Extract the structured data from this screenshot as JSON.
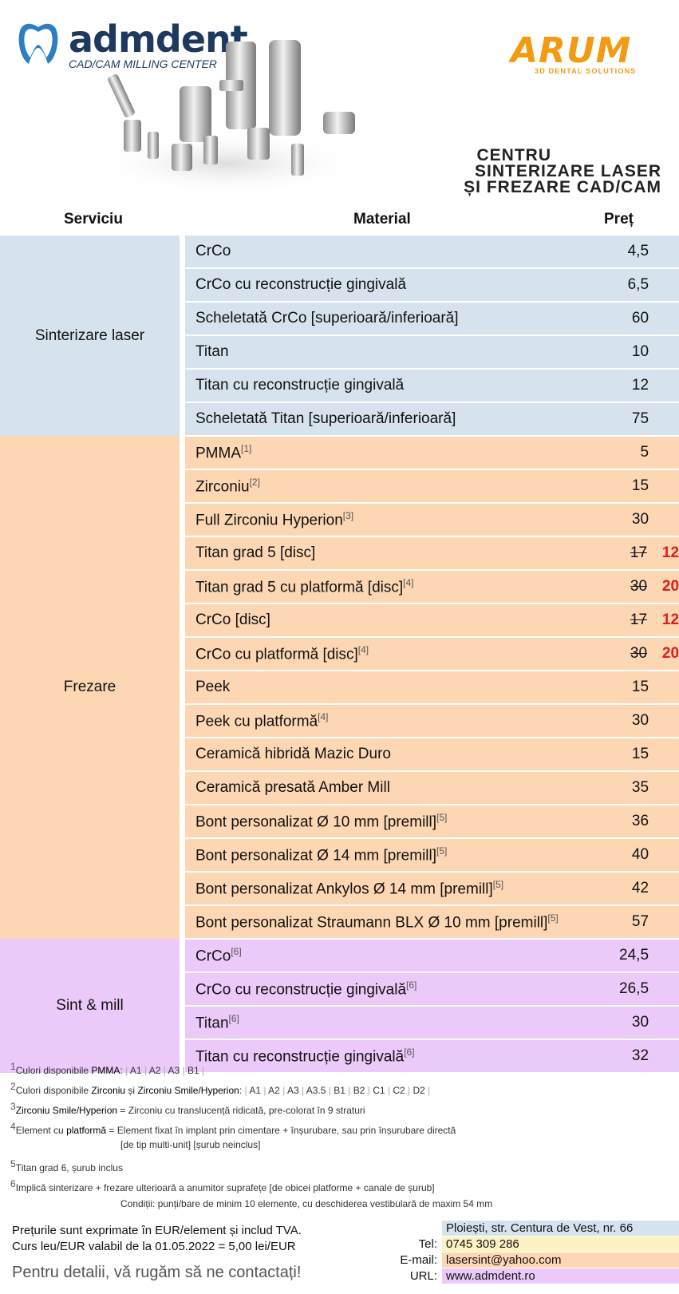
{
  "header": {
    "brand": "admdent",
    "brand_sub": "CAD/CAM MILLING CENTER",
    "partner": "ARUM",
    "partner_sub": "3D DENTAL SOLUTIONS",
    "center_lines": [
      "CENTRU",
      "SINTERIZARE LASER",
      "ȘI FREZARE CAD/CAM"
    ]
  },
  "columns": {
    "service": "Serviciu",
    "material": "Material",
    "price": "Preț"
  },
  "groups": [
    {
      "service": "Sinterizare laser",
      "color": "#d6e3ef",
      "items": [
        {
          "material": "CrCo",
          "price": "4,5"
        },
        {
          "material": "CrCo cu reconstrucție gingivală",
          "price": "6,5"
        },
        {
          "material": "Scheletată CrCo [superioară/inferioară]",
          "price": "60"
        },
        {
          "material": "Titan",
          "price": "10"
        },
        {
          "material": "Titan cu reconstrucție gingivală",
          "price": "12"
        },
        {
          "material": "Scheletată Titan [superioară/inferioară]",
          "price": "75"
        }
      ]
    },
    {
      "service": "Frezare",
      "color": "#fdd7b4",
      "items": [
        {
          "material": "PMMA",
          "sup": "[1]",
          "price": "5"
        },
        {
          "material": "Zirconiu",
          "sup": "[2]",
          "price": "15"
        },
        {
          "material": "Full Zirconiu Hyperion",
          "sup": "[3]",
          "price": "30"
        },
        {
          "material": "Titan grad 5 [disc]",
          "price": "17",
          "new_price": "12"
        },
        {
          "material": "Titan grad 5 cu platformă [disc]",
          "sup": "[4]",
          "price": "30",
          "new_price": "20"
        },
        {
          "material": "CrCo [disc]",
          "price": "17",
          "new_price": "12"
        },
        {
          "material": "CrCo cu platformă [disc]",
          "sup": "[4]",
          "price": "30",
          "new_price": "20"
        },
        {
          "material": "Peek",
          "price": "15"
        },
        {
          "material": "Peek cu platformă",
          "sup": "[4]",
          "price": "30"
        },
        {
          "material": "Ceramică hibridă Mazic Duro",
          "price": "15"
        },
        {
          "material": "Ceramică presată Amber Mill",
          "price": "35"
        },
        {
          "material": "Bont personalizat Ø 10 mm [premill]",
          "sup": "[5]",
          "price": "36"
        },
        {
          "material": "Bont personalizat Ø 14 mm [premill]",
          "sup": "[5]",
          "price": "40"
        },
        {
          "material": "Bont personalizat Ankylos Ø 14 mm [premill]",
          "sup": "[5]",
          "price": "42"
        },
        {
          "material": "Bont personalizat Straumann BLX Ø 10 mm [premill]",
          "sup": "[5]",
          "price": "57"
        }
      ]
    },
    {
      "service": "Sint & mill",
      "color": "#ebc9f8",
      "items": [
        {
          "material": "CrCo",
          "sup": "[6]",
          "price": "24,5"
        },
        {
          "material": "CrCo cu reconstrucție gingivală",
          "sup": "[6]",
          "price": "26,5"
        },
        {
          "material": "Titan",
          "sup": "[6]",
          "price": "30"
        },
        {
          "material": "Titan cu reconstrucție gingivală",
          "sup": "[6]",
          "price": "32"
        }
      ]
    }
  ],
  "notes": {
    "n1": {
      "num": "1",
      "pre": "Culori disponibile ",
      "bold": "PMMA",
      "post": ":",
      "shades": [
        "A1",
        "A2",
        "A3",
        "B1"
      ]
    },
    "n2": {
      "num": "2",
      "pre": "Culori disponibile ",
      "bold": "Zirconiu",
      "mid": " și ",
      "bold2": "Zirconiu Smile/Hyperion",
      "post": ":",
      "shades": [
        "A1",
        "A2",
        "A3",
        "A3.5",
        "B1",
        "B2",
        "C1",
        "C2",
        "D2"
      ]
    },
    "n3": {
      "num": "3",
      "bold": "Zirconiu Smile/Hyperion",
      "post": " = Zirconiu cu translucență ridicată, pre-colorat în 9 straturi"
    },
    "n4": {
      "num": "4",
      "pre": "Element cu ",
      "bold": "platformă",
      "post": " = Element fixat în implant prin cimentare + înșurubare, sau prin înșurubare directă",
      "line2": "[de tip multi-unit] [șurub neinclus]"
    },
    "n5": {
      "num": "5",
      "text": "Titan grad 6, șurub inclus"
    },
    "n6": {
      "num": "6",
      "text": "Implică sinterizare + frezare ulterioară a anumitor suprafețe [de obicei platforme + canale de șurub]",
      "line2": "Condiții: punți/bare de minim 10 elemente, cu deschiderea vestibulară de maxim 54 mm"
    }
  },
  "footer": {
    "line1": "Prețurile sunt exprimate în EUR/element și includ TVA.",
    "line2": "Curs leu/EUR valabil de la 01.05.2022 = 5,00 lei/EUR",
    "cta": "Pentru detalii, vă rugăm să ne contactați!",
    "address": "Ploiești, str. Centura de Vest, nr. 66",
    "tel_label": "Tel:",
    "tel": "0745 309 286",
    "email_label": "E-mail:",
    "email": "lasersint@yahoo.com",
    "url_label": "URL:",
    "url": "www.admdent.ro",
    "colors": {
      "address": "#d6e3ef",
      "tel": "#fdf2c4",
      "email": "#fdd7b4",
      "url": "#ebc9f8"
    }
  }
}
